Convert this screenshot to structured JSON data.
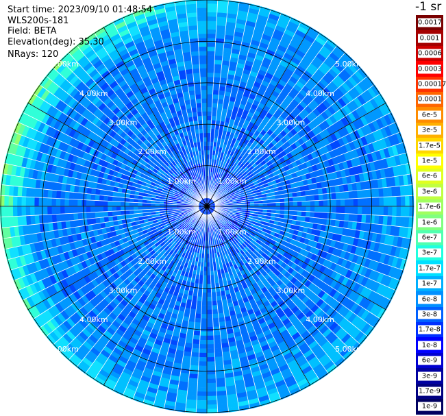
{
  "info": {
    "start_time": "Start time: 2023/09/10 01:48:54",
    "instrument": "WLS200s-181",
    "field": "Field: BETA",
    "elevation": "Elevation(deg): 35.30",
    "nrays": "NRays: 120"
  },
  "colorbar": {
    "unit": "-1 sr",
    "labels": [
      "0.0017",
      "0.001",
      "0.0006",
      "0.0003",
      "0.00017",
      "0.0001",
      "6e-5",
      "3e-5",
      "1.7e-5",
      "1e-5",
      "6e-6",
      "3e-6",
      "1.7e-6",
      "1e-6",
      "6e-7",
      "3e-7",
      "1.7e-7",
      "1e-7",
      "6e-8",
      "3e-8",
      "1.7e-8",
      "1e-8",
      "6e-9",
      "3e-9",
      "1.7e-9",
      "1e-9"
    ],
    "colors": [
      "#7a0000",
      "#a50000",
      "#cc0000",
      "#ff0000",
      "#ff3300",
      "#ff6600",
      "#ff8c00",
      "#ffb000",
      "#ffd700",
      "#ffff00",
      "#e0ff20",
      "#c0ff40",
      "#a0ff60",
      "#80ff80",
      "#50ffb0",
      "#20ffe0",
      "#00e0ff",
      "#00b0ff",
      "#0090ff",
      "#0060ff",
      "#0030ff",
      "#0000ff",
      "#0000d0",
      "#0000a0",
      "#000080",
      "#000060"
    ]
  },
  "ring_labels": [
    "1.00km",
    "2.00km",
    "3.00km",
    "4.00km",
    "5.00km"
  ],
  "chart_data": {
    "type": "heatmap",
    "projection": "polar (PPI scan)",
    "n_rays": 120,
    "range_rings_km": [
      1,
      2,
      3,
      4,
      5
    ],
    "max_range_km": 5.0,
    "field": "BETA",
    "color_scale": "log",
    "value_range": [
      1e-09,
      0.0017
    ]
  }
}
